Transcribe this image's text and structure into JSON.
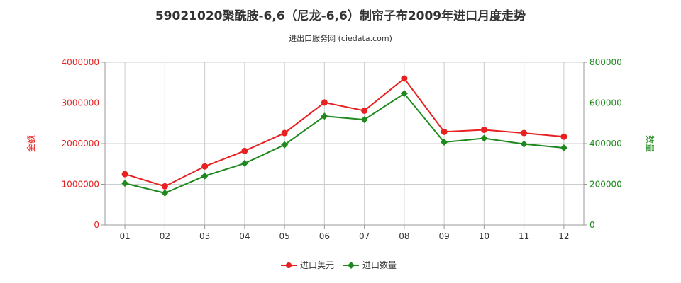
{
  "title": "59021020聚酰胺-6,6（尼龙-6,6）制帘子布2009年进口月度走势",
  "subtitle": "进出口服务网 (ciedata.com)",
  "colors": {
    "left": "#e82020",
    "right": "#1e8a1e",
    "grid": "#cccccc",
    "axis": "#999999"
  },
  "chart_data": {
    "type": "line",
    "categories": [
      "01",
      "02",
      "03",
      "04",
      "05",
      "06",
      "07",
      "08",
      "09",
      "10",
      "11",
      "12"
    ],
    "y_left": {
      "label": "金额",
      "ticks": [
        "0",
        "1000000",
        "2000000",
        "3000000",
        "4000000"
      ],
      "range": [
        0,
        4000000
      ]
    },
    "y_right": {
      "label": "数量",
      "ticks": [
        "0",
        "200000",
        "400000",
        "600000",
        "800000"
      ],
      "range": [
        0,
        800000
      ]
    },
    "series": [
      {
        "name": "进口美元",
        "axis": "left",
        "values": [
          1250000,
          950000,
          1440000,
          1820000,
          2260000,
          3010000,
          2810000,
          3600000,
          2290000,
          2340000,
          2260000,
          2170000
        ]
      },
      {
        "name": "进口数量",
        "axis": "right",
        "values": [
          205000,
          157000,
          241000,
          303000,
          394000,
          535000,
          518000,
          646000,
          407000,
          426000,
          398000,
          379000
        ]
      }
    ],
    "legend_position": "bottom-center",
    "grid": true
  }
}
